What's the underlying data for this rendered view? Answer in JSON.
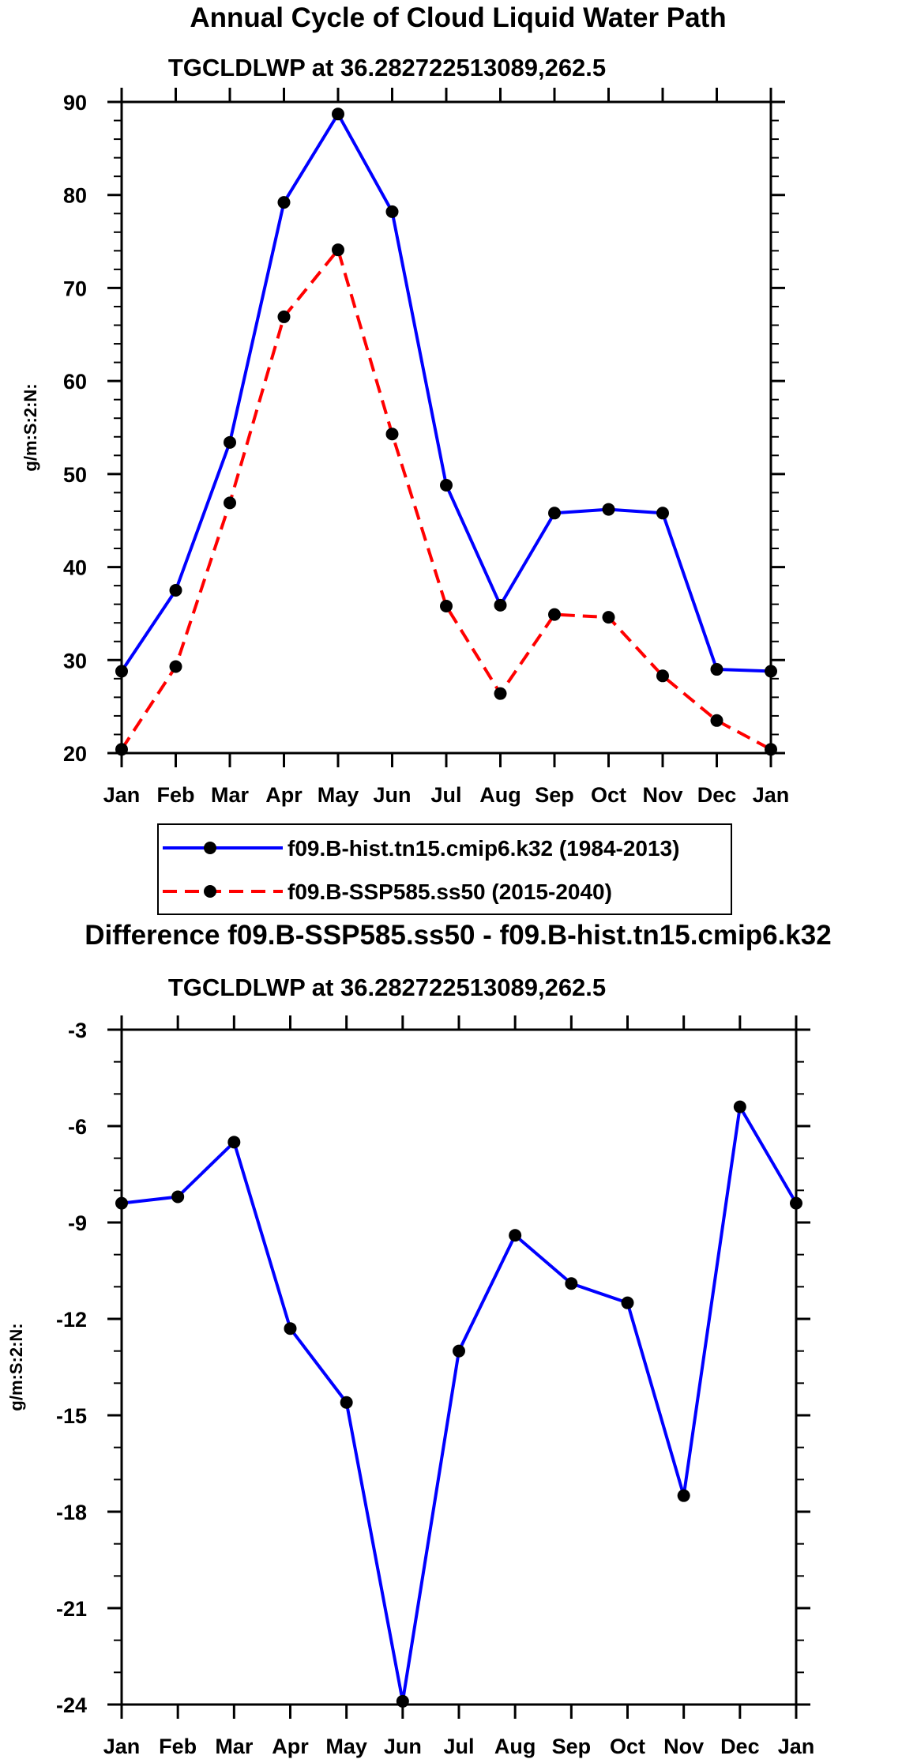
{
  "chart_data": [
    {
      "type": "line",
      "title": "Annual Cycle of Cloud Liquid Water Path",
      "subtitle": "TGCLDLWP at 36.282722513089,262.5",
      "ylabel": "g/m:S:2:N:",
      "xlabel": "",
      "categories": [
        "Jan",
        "Feb",
        "Mar",
        "Apr",
        "May",
        "Jun",
        "Jul",
        "Aug",
        "Sep",
        "Oct",
        "Nov",
        "Dec",
        "Jan"
      ],
      "ylim": [
        20,
        90
      ],
      "yticks": [
        {
          "value": 20,
          "label": "20"
        },
        {
          "value": 30,
          "label": "30"
        },
        {
          "value": 40,
          "label": "40"
        },
        {
          "value": 50,
          "label": "50"
        },
        {
          "value": 60,
          "label": "60"
        },
        {
          "value": 70,
          "label": "70"
        },
        {
          "value": 80,
          "label": "80"
        },
        {
          "value": 90,
          "label": "90"
        }
      ],
      "series": [
        {
          "name": "f09.B-hist.tn15.cmip6.k32 (1984-2013)",
          "color": "#0000ff",
          "dash": "solid",
          "values": [
            28.8,
            37.5,
            53.4,
            79.2,
            88.7,
            78.2,
            48.8,
            35.9,
            45.8,
            46.2,
            45.8,
            29.0,
            28.8
          ]
        },
        {
          "name": "f09.B-SSP585.ss50 (2015-2040)",
          "color": "#ff0000",
          "dash": "dashed",
          "values": [
            20.4,
            29.3,
            46.9,
            66.9,
            74.1,
            54.3,
            35.8,
            26.4,
            34.9,
            34.6,
            28.3,
            23.5,
            20.4
          ]
        }
      ],
      "legend": {
        "placement": "below",
        "entries": [
          "f09.B-hist.tn15.cmip6.k32 (1984-2013)",
          "f09.B-SSP585.ss50 (2015-2040)"
        ]
      }
    },
    {
      "type": "line",
      "title": "Difference f09.B-SSP585.ss50 - f09.B-hist.tn15.cmip6.k32",
      "subtitle": "TGCLDLWP at 36.282722513089,262.5",
      "ylabel": "g/m:S:2:N:",
      "xlabel": "",
      "categories": [
        "Jan",
        "Feb",
        "Mar",
        "Apr",
        "May",
        "Jun",
        "Jul",
        "Aug",
        "Sep",
        "Oct",
        "Nov",
        "Dec",
        "Jan"
      ],
      "ylim": [
        -24,
        -3
      ],
      "yticks": [
        {
          "value": -3,
          "label": "-3"
        },
        {
          "value": -6,
          "label": "-6"
        },
        {
          "value": -9,
          "label": "-9"
        },
        {
          "value": -12,
          "label": "-12"
        },
        {
          "value": -15,
          "label": "-15"
        },
        {
          "value": -18,
          "label": "-18"
        },
        {
          "value": -21,
          "label": "-21"
        },
        {
          "value": -24,
          "label": "-24"
        }
      ],
      "series": [
        {
          "name": "Difference",
          "color": "#0000ff",
          "dash": "solid",
          "values": [
            -8.4,
            -8.2,
            -6.5,
            -12.3,
            -14.6,
            -23.9,
            -13.0,
            -9.4,
            -10.9,
            -11.5,
            -17.5,
            -5.4,
            -8.4
          ]
        }
      ]
    }
  ]
}
